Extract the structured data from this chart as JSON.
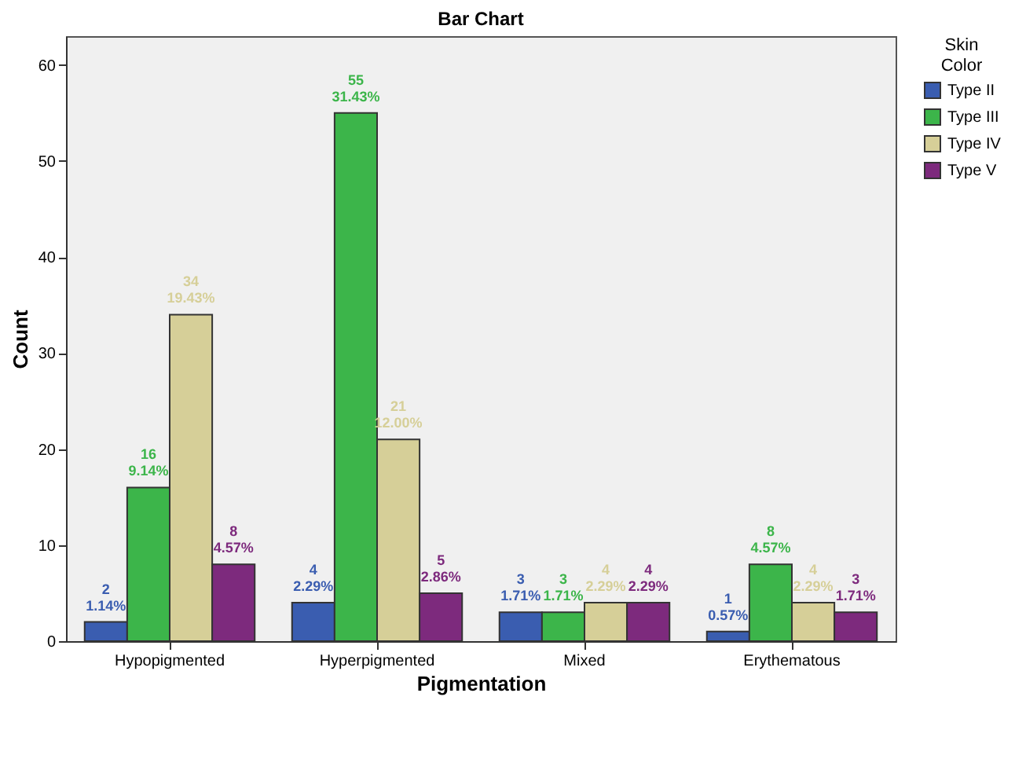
{
  "chart_data": {
    "type": "bar",
    "title": "Bar Chart",
    "xlabel": "Pigmentation",
    "ylabel": "Count",
    "legend_title": "Skin Color",
    "legend": "right",
    "grid": false,
    "categories": [
      "Hypopigmented",
      "Hyperpigmented",
      "Mixed",
      "Erythematous"
    ],
    "ylim": [
      0,
      63
    ],
    "yticks": [
      0,
      10,
      20,
      30,
      40,
      50,
      60
    ],
    "series": [
      {
        "name": "Type II",
        "color": "#3a5db0",
        "values": [
          2,
          4,
          3,
          1
        ],
        "value_labels": [
          "2\n1.14%",
          "4\n2.29%",
          "3\n1.71%",
          "1\n0.57%"
        ]
      },
      {
        "name": "Type III",
        "color": "#3cb54a",
        "values": [
          16,
          55,
          3,
          8
        ],
        "value_labels": [
          "16\n9.14%",
          "55\n31.43%",
          "3\n1.71%",
          "8\n4.57%"
        ]
      },
      {
        "name": "Type IV",
        "color": "#d6cf98",
        "values": [
          34,
          21,
          4,
          4
        ],
        "value_labels": [
          "34\n19.43%",
          "21\n12.00%",
          "4\n2.29%",
          "4\n2.29%"
        ]
      },
      {
        "name": "Type V",
        "color": "#7d2a7d",
        "values": [
          8,
          5,
          4,
          3
        ],
        "value_labels": [
          "8\n4.57%",
          "5\n2.86%",
          "4\n2.29%",
          "3\n1.71%"
        ]
      }
    ]
  }
}
